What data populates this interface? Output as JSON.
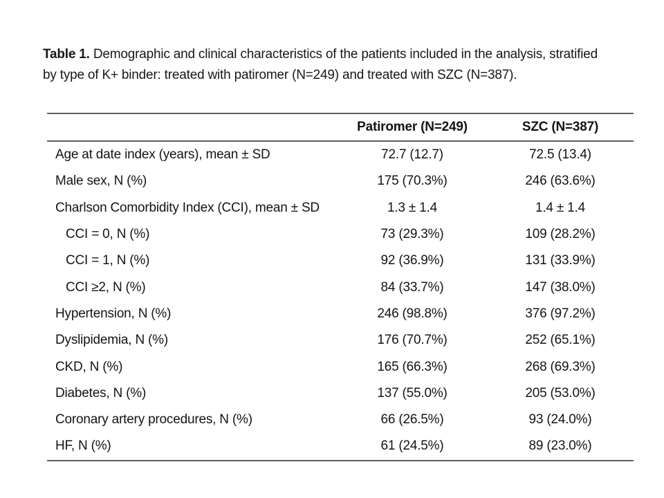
{
  "page": {
    "background": "#ffffff",
    "text_color": "#171717",
    "rule_color": "#5f5f5f"
  },
  "caption": {
    "label": "Table 1.",
    "line1_rest": "Demographic and clinical characteristics of the patients included in the analysis, stratified",
    "line2": "by type of K+ binder: treated with patiromer (N=249) and treated with SZC (N=387)."
  },
  "table": {
    "header": {
      "col2": "Patiromer (N=249)",
      "col3": "SZC (N=387)"
    },
    "rows": [
      {
        "label": "Age at date index (years), mean ± SD",
        "patiromer": "72.7 (12.7)",
        "szc": "72.5 (13.4)",
        "indent": false
      },
      {
        "label": "Male sex, N (%)",
        "patiromer": "175 (70.3%)",
        "szc": "246 (63.6%)",
        "indent": false
      },
      {
        "label": "Charlson Comorbidity Index (CCI), mean ± SD",
        "patiromer": "1.3 ± 1.4",
        "szc": "1.4 ± 1.4",
        "indent": false
      },
      {
        "label": "CCI = 0, N (%)",
        "patiromer": "73 (29.3%)",
        "szc": "109 (28.2%)",
        "indent": true
      },
      {
        "label": "CCI = 1, N (%)",
        "patiromer": "92 (36.9%)",
        "szc": "131 (33.9%)",
        "indent": true
      },
      {
        "label": "CCI ≥2, N (%)",
        "patiromer": "84 (33.7%)",
        "szc": "147 (38.0%)",
        "indent": true
      },
      {
        "label": "Hypertension, N (%)",
        "patiromer": "246 (98.8%)",
        "szc": "376 (97.2%)",
        "indent": false
      },
      {
        "label": "Dyslipidemia, N (%)",
        "patiromer": "176 (70.7%)",
        "szc": "252 (65.1%)",
        "indent": false
      },
      {
        "label": "CKD, N (%)",
        "patiromer": "165 (66.3%)",
        "szc": "268 (69.3%)",
        "indent": false
      },
      {
        "label": "Diabetes, N (%)",
        "patiromer": "137 (55.0%)",
        "szc": "205 (53.0%)",
        "indent": false
      },
      {
        "label": "Coronary artery procedures, N (%)",
        "patiromer": "66 (26.5%)",
        "szc": "93 (24.0%)",
        "indent": false
      },
      {
        "label": "HF, N (%)",
        "patiromer": "61 (24.5%)",
        "szc": "89 (23.0%)",
        "indent": false
      }
    ]
  }
}
